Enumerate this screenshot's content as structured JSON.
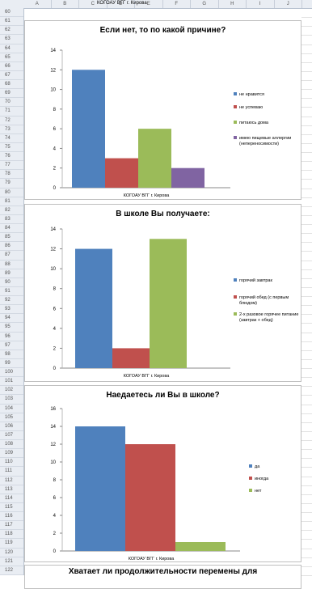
{
  "sheet": {
    "columns": [
      "A",
      "B",
      "C",
      "D",
      "E",
      "F",
      "G",
      "H",
      "I",
      "J"
    ],
    "rows": [
      "60",
      "61",
      "62",
      "63",
      "64",
      "65",
      "66",
      "67",
      "68",
      "69",
      "70",
      "71",
      "72",
      "73",
      "74",
      "75",
      "76",
      "77",
      "78",
      "79",
      "80",
      "81",
      "82",
      "83",
      "84",
      "85",
      "86",
      "87",
      "88",
      "89",
      "90",
      "91",
      "92",
      "93",
      "94",
      "95",
      "96",
      "97",
      "98",
      "99",
      "100",
      "101",
      "102",
      "103",
      "104",
      "105",
      "106",
      "107",
      "108",
      "109",
      "110",
      "111",
      "112",
      "113",
      "114",
      "115",
      "116",
      "117",
      "118",
      "119",
      "120",
      "121",
      "122"
    ],
    "top_label": "КОГОАУ ВГГ г. Кирова"
  },
  "charts": [
    {
      "title": "Если нет, то по какой причине?",
      "chart_data": {
        "type": "bar",
        "categories": [
          "КОГОАУ ВГГ г. Кирова"
        ],
        "ylim": [
          0,
          14
        ],
        "yticks": [
          0,
          2,
          4,
          6,
          8,
          10,
          12,
          14
        ],
        "series": [
          {
            "name": "не нравится",
            "values": [
              12
            ],
            "color": "#4f81bd"
          },
          {
            "name": "не успеваю",
            "values": [
              3
            ],
            "color": "#c0504d"
          },
          {
            "name": "питаюсь дома",
            "values": [
              6
            ],
            "color": "#9bbb59"
          },
          {
            "name": "имею пищевые аллергии (непереносимости)",
            "values": [
              2
            ],
            "color": "#8064a2"
          }
        ],
        "legend": "right"
      }
    },
    {
      "title": "В школе Вы получаете:",
      "chart_data": {
        "type": "bar",
        "categories": [
          "КОГОАУ ВГГ г. Кирова"
        ],
        "ylim": [
          0,
          14
        ],
        "yticks": [
          0,
          2,
          4,
          6,
          8,
          10,
          12,
          14
        ],
        "series": [
          {
            "name": "горячий завтрак",
            "values": [
              12
            ],
            "color": "#4f81bd"
          },
          {
            "name": "горячий обед (с первым блюдом)",
            "values": [
              2
            ],
            "color": "#c0504d"
          },
          {
            "name": "2-х разовое горячее питание (завтрак + обед)",
            "values": [
              13
            ],
            "color": "#9bbb59"
          }
        ],
        "legend": "right"
      }
    },
    {
      "title": "Наедаетесь ли Вы в школе?",
      "chart_data": {
        "type": "bar",
        "categories": [
          "КОГОАУ ВГГ г. Кирова"
        ],
        "ylim": [
          0,
          16
        ],
        "yticks": [
          0,
          2,
          4,
          6,
          8,
          10,
          12,
          14,
          16
        ],
        "series": [
          {
            "name": "да",
            "values": [
              14
            ],
            "color": "#4f81bd"
          },
          {
            "name": "иногда",
            "values": [
              12
            ],
            "color": "#c0504d"
          },
          {
            "name": "нет",
            "values": [
              1
            ],
            "color": "#9bbb59"
          }
        ],
        "legend": "right"
      }
    },
    {
      "title": "Хватает ли продолжительности перемены для"
    }
  ]
}
